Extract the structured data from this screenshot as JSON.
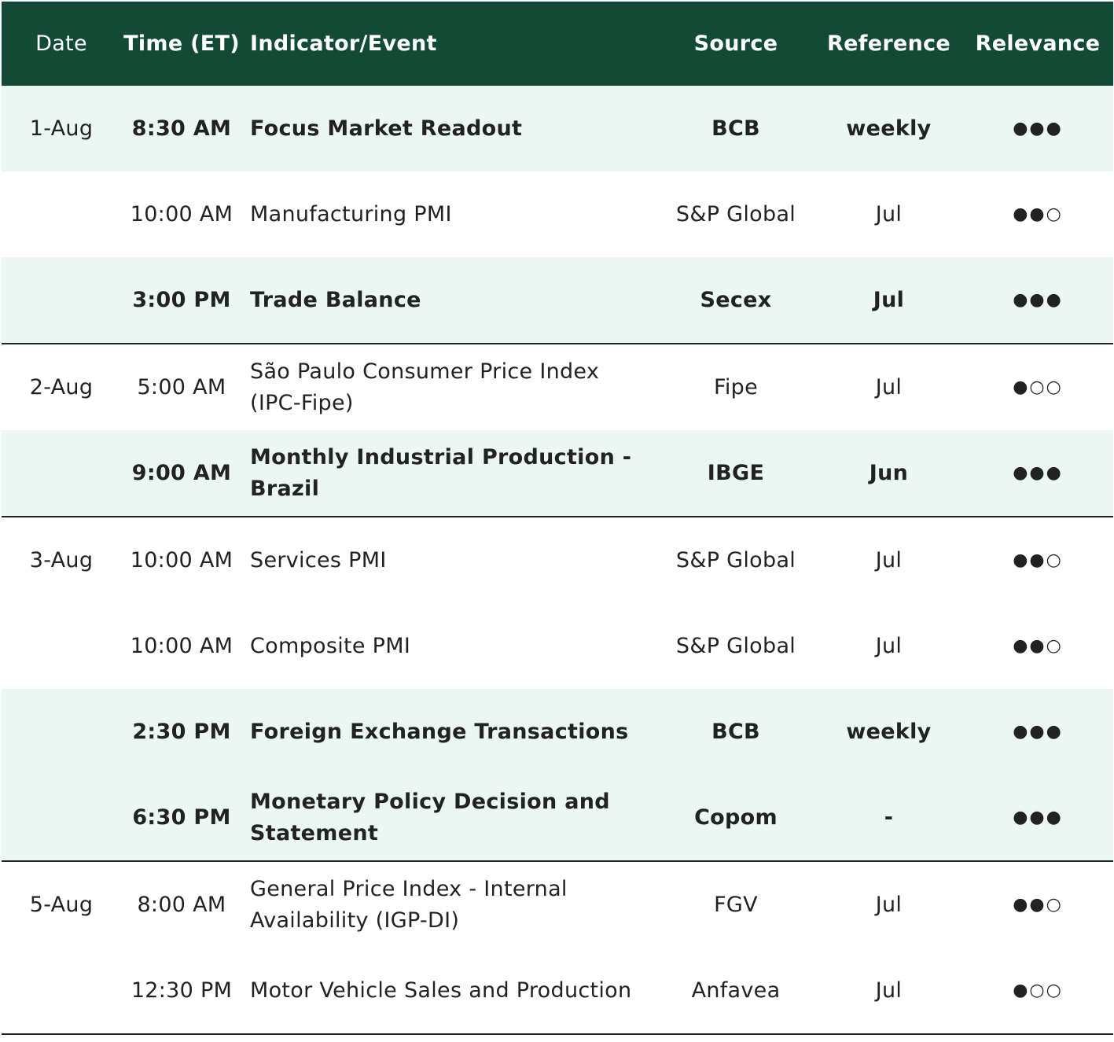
{
  "headers": {
    "date": "Date",
    "time": "Time (ET)",
    "indicator": "Indicator/Event",
    "source": "Source",
    "reference": "Reference",
    "relevance": "Relevance"
  },
  "rows": [
    {
      "date": "1-Aug",
      "time": "8:30 AM",
      "indicator": "Focus Market Readout",
      "source": "BCB",
      "reference": "weekly",
      "relevance": "●●●"
    },
    {
      "date": "",
      "time": "10:00 AM",
      "indicator": "Manufacturing PMI",
      "source": "S&P Global",
      "reference": "Jul",
      "relevance": "●●○"
    },
    {
      "date": "",
      "time": "3:00 PM",
      "indicator": "Trade Balance",
      "source": "Secex",
      "reference": "Jul",
      "relevance": "●●●"
    },
    {
      "date": "2-Aug",
      "time": "5:00 AM",
      "indicator": "São Paulo Consumer Price Index (IPC-Fipe)",
      "source": "Fipe",
      "reference": "Jul",
      "relevance": "●○○"
    },
    {
      "date": "",
      "time": "9:00 AM",
      "indicator": "Monthly Industrial Production - Brazil",
      "source": "IBGE",
      "reference": "Jun",
      "relevance": "●●●"
    },
    {
      "date": "3-Aug",
      "time": "10:00 AM",
      "indicator": "Services PMI",
      "source": "S&P Global",
      "reference": "Jul",
      "relevance": "●●○"
    },
    {
      "date": "",
      "time": "10:00 AM",
      "indicator": "Composite PMI",
      "source": "S&P Global",
      "reference": "Jul",
      "relevance": "●●○"
    },
    {
      "date": "",
      "time": "2:30 PM",
      "indicator": "Foreign Exchange Transactions",
      "source": "BCB",
      "reference": "weekly",
      "relevance": "●●●"
    },
    {
      "date": "",
      "time": "6:30 PM",
      "indicator": "Monetary Policy Decision and Statement",
      "source": "Copom",
      "reference": "-",
      "relevance": "●●●"
    },
    {
      "date": "5-Aug",
      "time": "8:00 AM",
      "indicator": "General Price Index - Internal Availability (IGP-DI)",
      "source": "FGV",
      "reference": "Jul",
      "relevance": "●●○"
    },
    {
      "date": "",
      "time": "12:30 PM",
      "indicator": "Motor Vehicle Sales and Production",
      "source": "Anfavea",
      "reference": "Jul",
      "relevance": "●○○"
    }
  ],
  "colors": {
    "header_bg": "#134a36",
    "header_text": "#ffffff",
    "highlight_row_bg": "#eaf7f3",
    "divider": "#222222"
  }
}
